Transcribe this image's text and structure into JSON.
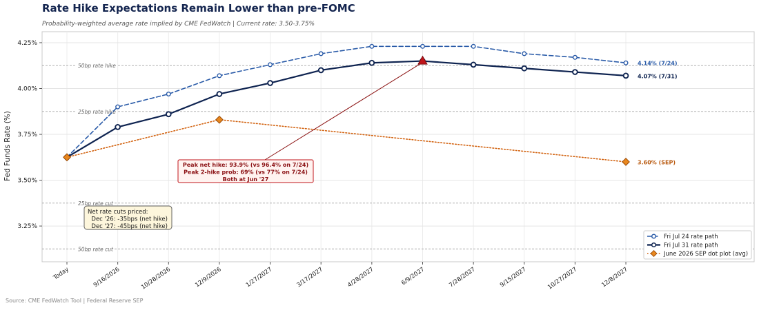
{
  "title": "Rate Hike Expectations Remain Lower than pre-FOMC",
  "subtitle": "Probability-weighted average rate implied by CME FedWatch  |  Current rate: 3.50-3.75%",
  "source": "Source: CME FedWatch Tool  |  Federal Reserve SEP",
  "chart_data": {
    "type": "line",
    "ylabel": "Fed Funds Rate (%)",
    "xlabel": "",
    "categories": [
      "Today",
      "9/16/2026",
      "10/28/2026",
      "12/9/2026",
      "1/27/2027",
      "3/17/2027",
      "4/28/2027",
      "6/9/2027",
      "7/28/2027",
      "9/15/2027",
      "10/27/2027",
      "12/8/2027"
    ],
    "ylim": [
      3.055,
      4.31
    ],
    "yticks": [
      3.25,
      3.5,
      3.75,
      4.0,
      4.25
    ],
    "ytick_labels": [
      "3.25%",
      "3.50%",
      "3.75%",
      "4.00%",
      "4.25%"
    ],
    "grid": true,
    "legend_position": "lower-right",
    "series": [
      {
        "name": "Fri Jul 24 rate path",
        "color": "#2a5ba8",
        "style": "dashed",
        "marker": "circle",
        "points": [
          {
            "category": "Today",
            "value": 3.625
          },
          {
            "category": "9/16/2026",
            "value": 3.9
          },
          {
            "category": "10/28/2026",
            "value": 3.97
          },
          {
            "category": "12/9/2026",
            "value": 4.07
          },
          {
            "category": "1/27/2027",
            "value": 4.13
          },
          {
            "category": "3/17/2027",
            "value": 4.19
          },
          {
            "category": "4/28/2027",
            "value": 4.23
          },
          {
            "category": "6/9/2027",
            "value": 4.23
          },
          {
            "category": "7/28/2027",
            "value": 4.23
          },
          {
            "category": "9/15/2027",
            "value": 4.19
          },
          {
            "category": "10/27/2027",
            "value": 4.17
          },
          {
            "category": "12/8/2027",
            "value": 4.14
          }
        ],
        "end_label": "4.14% (7/24)"
      },
      {
        "name": "Fri Jul 31 rate path",
        "color": "#0e2350",
        "style": "solid",
        "marker": "circle",
        "points": [
          {
            "category": "Today",
            "value": 3.625
          },
          {
            "category": "9/16/2026",
            "value": 3.79
          },
          {
            "category": "10/28/2026",
            "value": 3.86
          },
          {
            "category": "12/9/2026",
            "value": 3.97
          },
          {
            "category": "1/27/2027",
            "value": 4.03
          },
          {
            "category": "3/17/2027",
            "value": 4.1
          },
          {
            "category": "4/28/2027",
            "value": 4.14
          },
          {
            "category": "6/9/2027",
            "value": 4.15
          },
          {
            "category": "7/28/2027",
            "value": 4.13
          },
          {
            "category": "9/15/2027",
            "value": 4.11
          },
          {
            "category": "10/27/2027",
            "value": 4.09
          },
          {
            "category": "12/8/2027",
            "value": 4.07
          }
        ],
        "end_label": "4.07% (7/31)"
      },
      {
        "name": "June 2026 SEP dot plot (avg)",
        "color": "#d2620f",
        "style": "dotted",
        "marker": "diamond",
        "points": [
          {
            "category": "Today",
            "value": 3.625
          },
          {
            "category": "12/9/2026",
            "value": 3.83
          },
          {
            "category": "12/8/2027",
            "value": 3.6
          }
        ],
        "end_label": "3.60% (SEP)"
      }
    ],
    "reference_lines": [
      {
        "value": 4.125,
        "label": "50bp rate hike"
      },
      {
        "value": 3.875,
        "label": "25bp rate hike"
      },
      {
        "value": 3.375,
        "label": "25bp rate cut"
      },
      {
        "value": 3.125,
        "label": "50bp rate cut"
      }
    ],
    "annotations": {
      "peak": {
        "category": "6/9/2027",
        "value": 4.15,
        "color": "#c0151b",
        "lines": [
          "Peak net hike: 93.9% (vs 96.4% on 7/24)",
          "Peak 2-hike prob: 69% (vs 77% on 7/24)",
          "Both at Jun '27"
        ]
      },
      "cuts": {
        "lines": [
          "Net rate cuts priced:",
          "  Dec '26: -35bps (net hike)",
          "  Dec '27: -45bps (net hike)"
        ]
      }
    }
  }
}
